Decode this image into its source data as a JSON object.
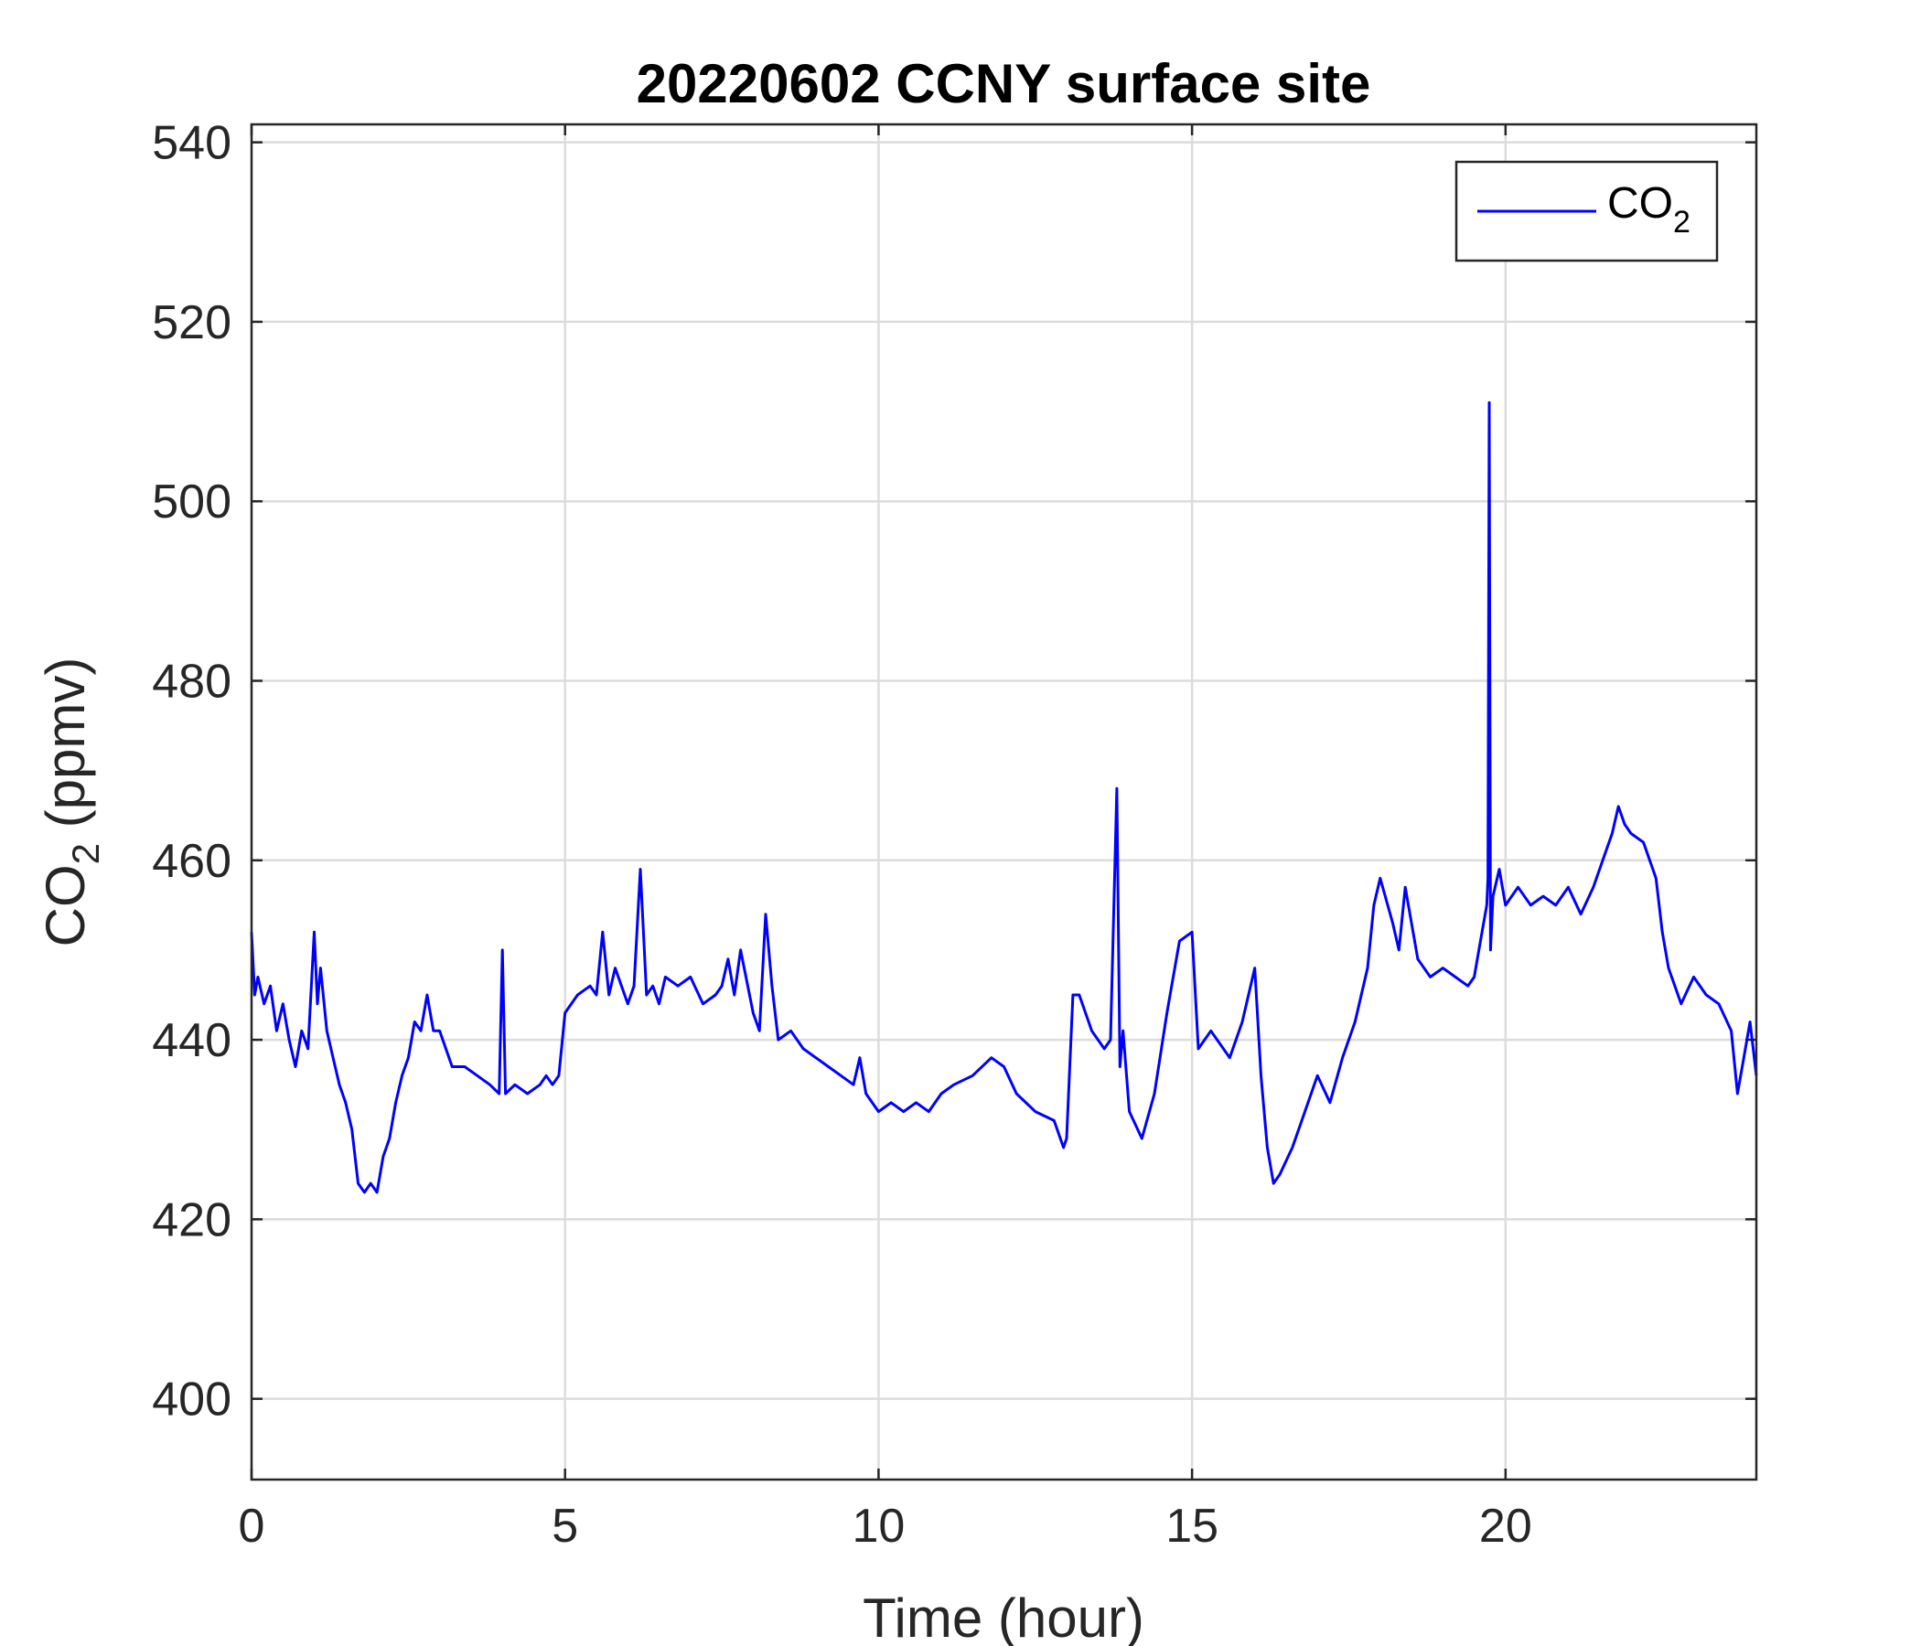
{
  "chart_data": {
    "type": "line",
    "title": "20220602 CCNY surface site",
    "xlabel": "Time (hour)",
    "ylabel": {
      "main": "CO",
      "sub": "2",
      "unit": " (ppmv)"
    },
    "xlim": [
      0,
      24
    ],
    "ylim": [
      391,
      542
    ],
    "xticks": [
      0,
      5,
      10,
      15,
      20
    ],
    "yticks": [
      400,
      420,
      440,
      460,
      480,
      500,
      520,
      540
    ],
    "grid": true,
    "legend_position": "top-right",
    "series": [
      {
        "name": {
          "main": "CO",
          "sub": "2"
        },
        "color": "#0000ff",
        "x": [
          0,
          0.05,
          0.1,
          0.2,
          0.3,
          0.4,
          0.5,
          0.6,
          0.7,
          0.8,
          0.9,
          1.0,
          1.05,
          1.1,
          1.2,
          1.3,
          1.4,
          1.5,
          1.6,
          1.7,
          1.8,
          1.9,
          2.0,
          2.1,
          2.2,
          2.3,
          2.4,
          2.5,
          2.6,
          2.7,
          2.8,
          2.9,
          3.0,
          3.2,
          3.4,
          3.6,
          3.8,
          3.95,
          4.0,
          4.05,
          4.2,
          4.4,
          4.6,
          4.7,
          4.8,
          4.9,
          5.0,
          5.2,
          5.4,
          5.5,
          5.6,
          5.7,
          5.8,
          6.0,
          6.1,
          6.2,
          6.3,
          6.4,
          6.5,
          6.6,
          6.8,
          7.0,
          7.2,
          7.4,
          7.5,
          7.6,
          7.7,
          7.8,
          8.0,
          8.1,
          8.2,
          8.3,
          8.4,
          8.6,
          8.8,
          9.0,
          9.2,
          9.4,
          9.6,
          9.7,
          9.8,
          10.0,
          10.2,
          10.4,
          10.6,
          10.8,
          11.0,
          11.2,
          11.5,
          11.8,
          12.0,
          12.2,
          12.5,
          12.8,
          12.95,
          13.0,
          13.1,
          13.2,
          13.4,
          13.6,
          13.7,
          13.8,
          13.85,
          13.9,
          14.0,
          14.2,
          14.4,
          14.6,
          14.8,
          15.0,
          15.1,
          15.3,
          15.6,
          15.8,
          16.0,
          16.1,
          16.2,
          16.3,
          16.4,
          16.6,
          16.8,
          17.0,
          17.2,
          17.4,
          17.6,
          17.8,
          17.9,
          18.0,
          18.2,
          18.3,
          18.4,
          18.6,
          18.8,
          19.0,
          19.2,
          19.4,
          19.5,
          19.6,
          19.7,
          19.72,
          19.74,
          19.76,
          19.8,
          19.9,
          20.0,
          20.2,
          20.4,
          20.6,
          20.8,
          21.0,
          21.2,
          21.4,
          21.6,
          21.7,
          21.8,
          21.9,
          22.0,
          22.2,
          22.4,
          22.5,
          22.6,
          22.8,
          23.0,
          23.2,
          23.4,
          23.6,
          23.7,
          23.8,
          23.9,
          24.0
        ],
        "values": [
          452,
          445,
          447,
          444,
          446,
          441,
          444,
          440,
          437,
          441,
          439,
          452,
          444,
          448,
          441,
          438,
          435,
          433,
          430,
          424,
          423,
          424,
          423,
          427,
          429,
          433,
          436,
          438,
          442,
          441,
          445,
          441,
          441,
          437,
          437,
          436,
          435,
          434,
          450,
          434,
          435,
          434,
          435,
          436,
          435,
          436,
          443,
          445,
          446,
          445,
          452,
          445,
          448,
          444,
          446,
          459,
          445,
          446,
          444,
          447,
          446,
          447,
          444,
          445,
          446,
          449,
          445,
          450,
          443,
          441,
          454,
          446,
          440,
          441,
          439,
          438,
          437,
          436,
          435,
          438,
          434,
          432,
          433,
          432,
          433,
          432,
          434,
          435,
          436,
          438,
          437,
          434,
          432,
          431,
          428,
          429,
          445,
          445,
          441,
          439,
          440,
          468,
          437,
          441,
          432,
          429,
          434,
          443,
          451,
          452,
          439,
          441,
          438,
          442,
          448,
          436,
          428,
          424,
          425,
          428,
          432,
          436,
          433,
          438,
          442,
          448,
          455,
          458,
          453,
          450,
          457,
          449,
          447,
          448,
          447,
          446,
          447,
          451,
          455,
          458,
          511,
          450,
          456,
          459,
          455,
          457,
          455,
          456,
          455,
          457,
          454,
          457,
          461,
          463,
          466,
          464,
          463,
          462,
          458,
          452,
          448,
          444,
          447,
          445,
          444,
          441,
          434,
          438,
          442,
          436
        ]
      }
    ]
  }
}
